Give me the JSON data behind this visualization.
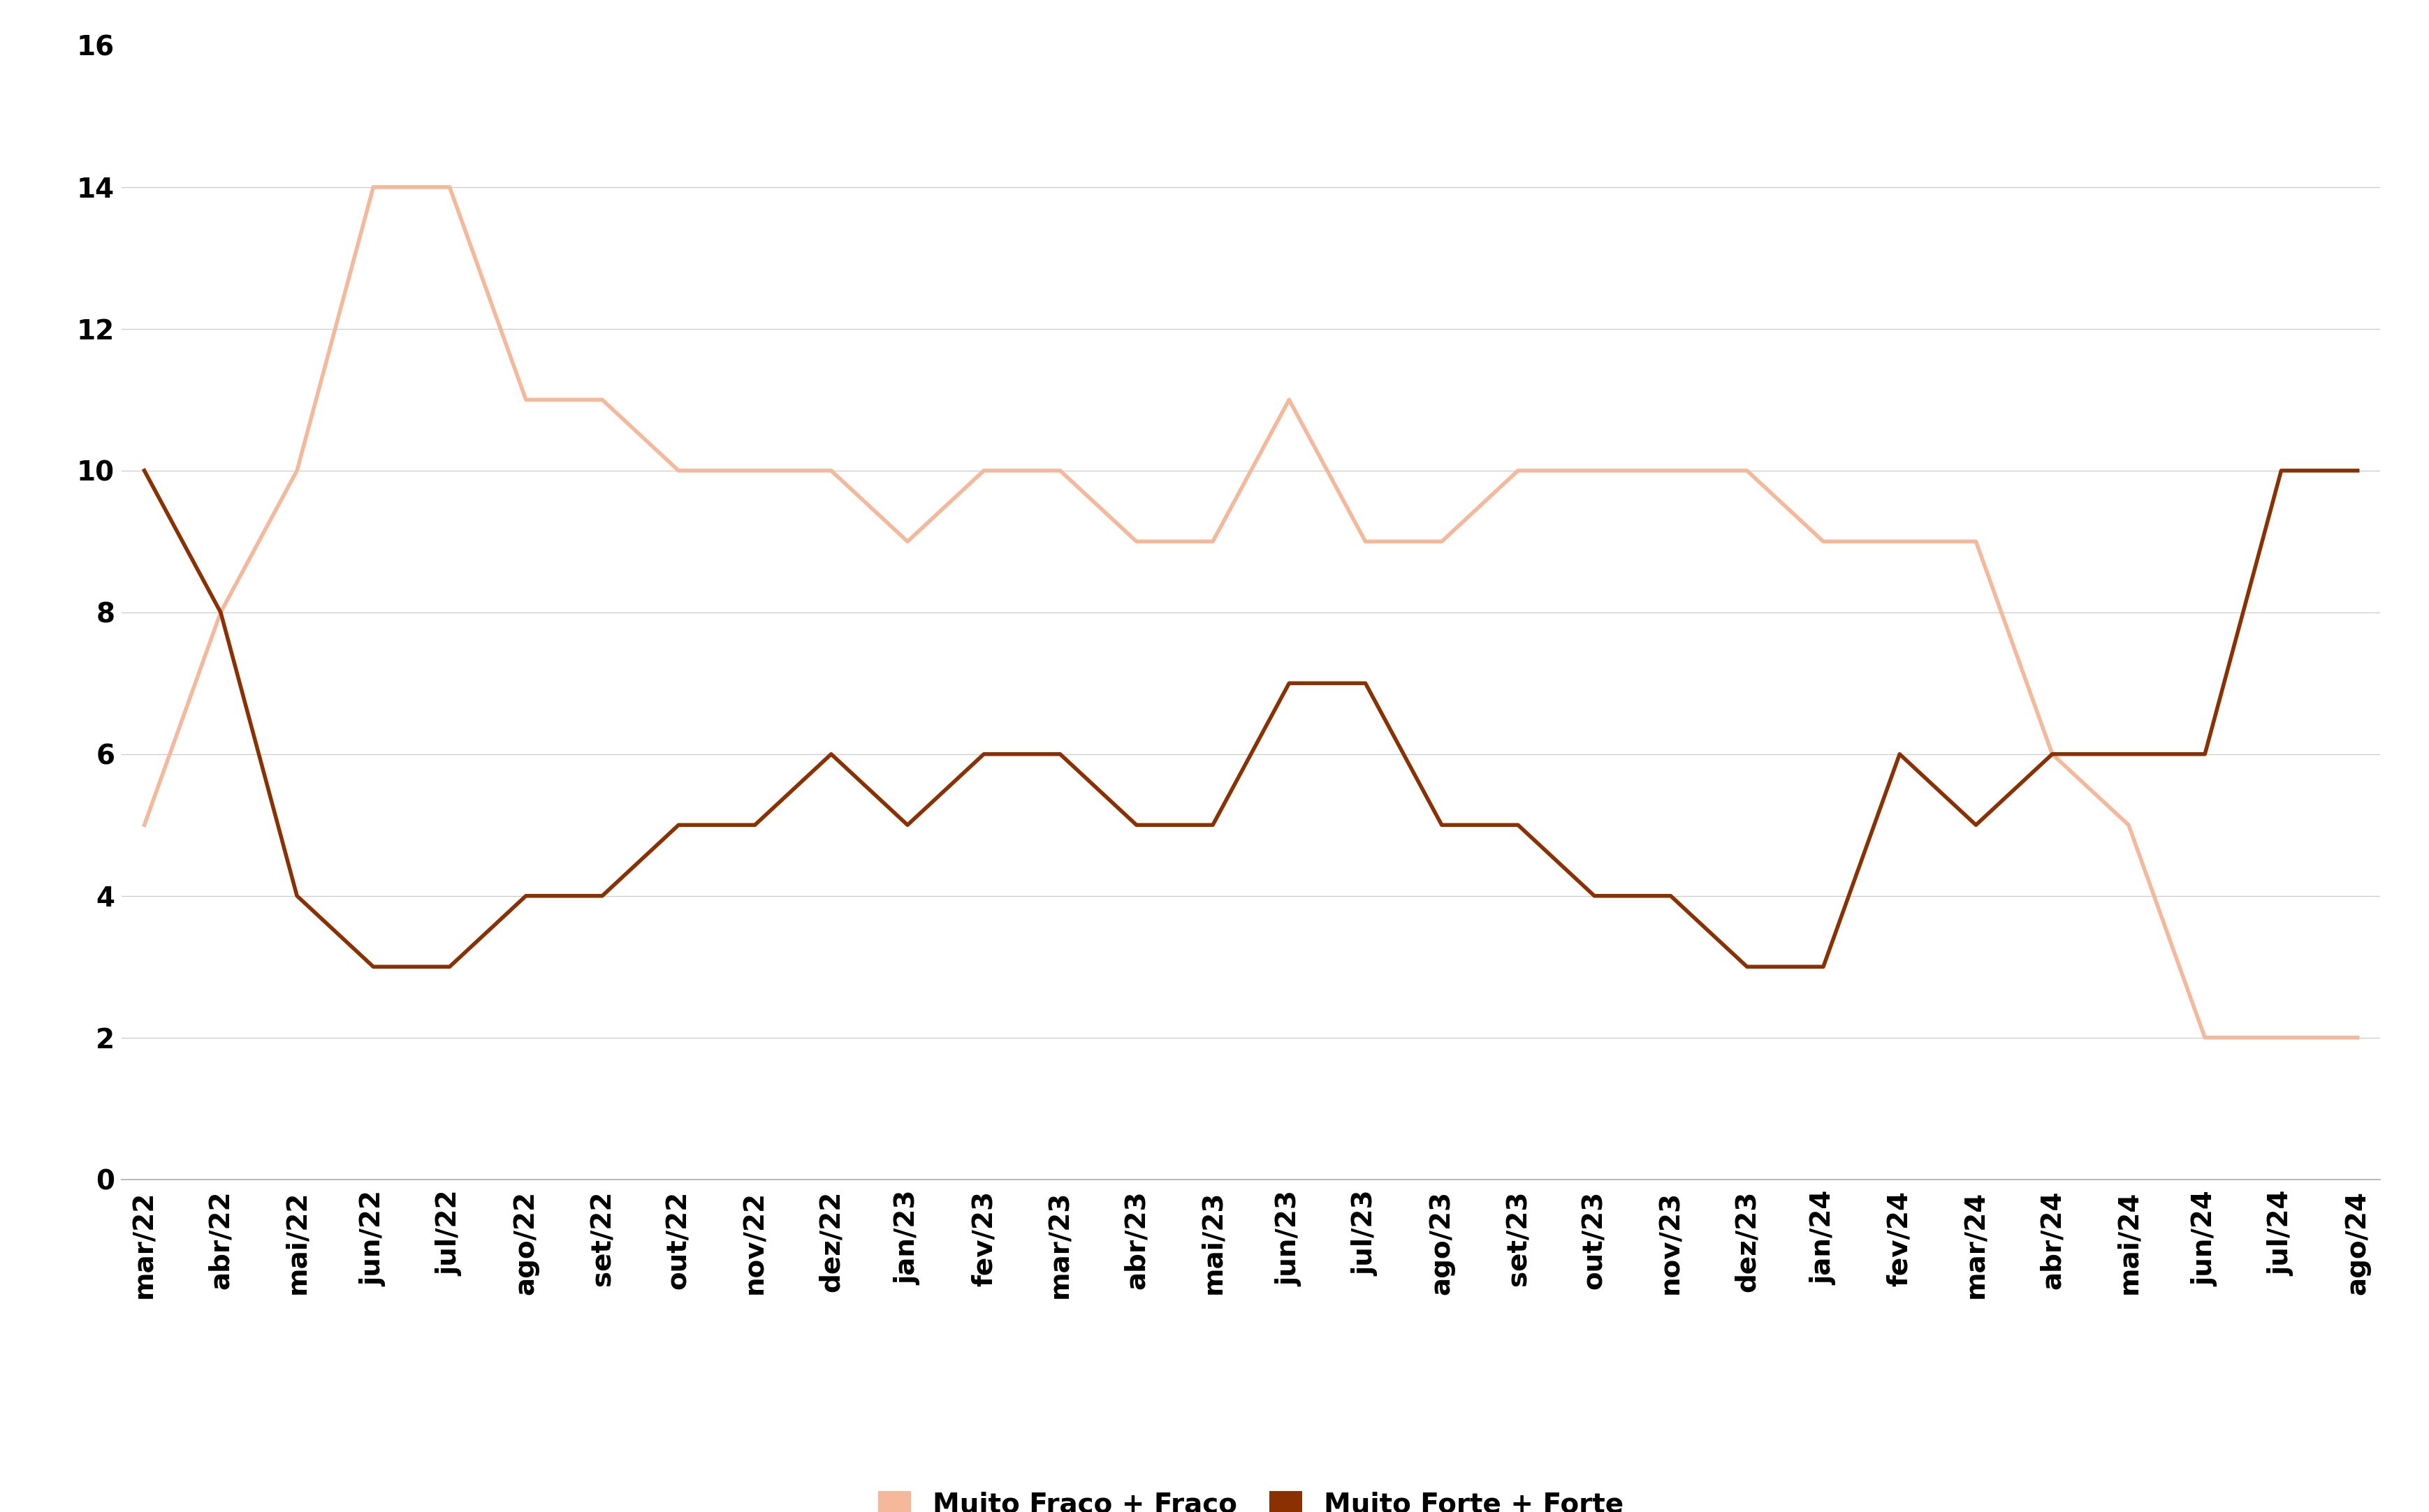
{
  "categories": [
    "mar/22",
    "abr/22",
    "mai/22",
    "jun/22",
    "jul/22",
    "ago/22",
    "set/22",
    "out/22",
    "nov/22",
    "dez/22",
    "jan/23",
    "fev/23",
    "mar/23",
    "abr/23",
    "mai/23",
    "jun/23",
    "jul/23",
    "ago/23",
    "set/23",
    "out/23",
    "nov/23",
    "dez/23",
    "jan/24",
    "fev/24",
    "mar/24",
    "abr/24",
    "mai/24",
    "jun/24",
    "jul/24",
    "ago/24"
  ],
  "muito_fraco_fraco": [
    5,
    8,
    10,
    14,
    14,
    11,
    11,
    10,
    10,
    10,
    9,
    10,
    10,
    9,
    9,
    11,
    9,
    9,
    10,
    10,
    10,
    10,
    9,
    9,
    9,
    6,
    5,
    2,
    2,
    2
  ],
  "muito_forte_forte": [
    10,
    8,
    4,
    3,
    3,
    4,
    4,
    5,
    5,
    6,
    5,
    6,
    6,
    5,
    5,
    7,
    7,
    5,
    5,
    4,
    4,
    3,
    3,
    6,
    5,
    6,
    6,
    6,
    10,
    10
  ],
  "color_fraco": "#f5b89a",
  "color_forte": "#8b3000",
  "label_fraco": "Muito Fraco + Fraco",
  "label_forte": "Muito Forte + Forte",
  "ylim": [
    0,
    16
  ],
  "yticks": [
    0,
    2,
    4,
    6,
    8,
    10,
    12,
    14,
    16
  ],
  "grid_yticks": [
    2,
    4,
    6,
    8,
    10,
    12,
    14
  ],
  "background_color": "#ffffff",
  "line_width": 4.0,
  "tick_fontsize": 28,
  "legend_fontsize": 28
}
